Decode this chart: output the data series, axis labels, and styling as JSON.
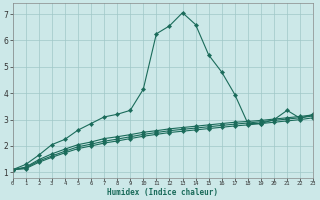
{
  "xlabel": "Humidex (Indice chaleur)",
  "bg_color": "#cce8e8",
  "grid_color": "#a0c8c8",
  "line_color": "#1a6b5a",
  "xlim": [
    0,
    23
  ],
  "ylim": [
    0.8,
    7.4
  ],
  "xticks": [
    0,
    1,
    2,
    3,
    4,
    5,
    6,
    7,
    8,
    9,
    10,
    11,
    12,
    13,
    14,
    15,
    16,
    17,
    18,
    19,
    20,
    21,
    22,
    23
  ],
  "yticks": [
    1,
    2,
    3,
    4,
    5,
    6,
    7
  ],
  "line1_x": [
    0,
    1,
    2,
    3,
    4,
    5,
    6,
    7,
    8,
    9,
    10,
    11,
    12,
    13,
    14,
    15,
    16,
    17,
    18,
    19,
    20,
    21,
    22,
    23
  ],
  "line1_y": [
    1.1,
    1.3,
    1.65,
    2.05,
    2.25,
    2.6,
    2.85,
    3.1,
    3.2,
    3.35,
    4.15,
    6.25,
    6.55,
    7.05,
    6.6,
    5.45,
    4.8,
    3.95,
    2.85,
    2.85,
    3.0,
    3.35,
    3.05,
    3.2
  ],
  "line2_x": [
    0,
    1,
    2,
    3,
    4,
    5,
    6,
    7,
    8,
    9,
    10,
    11,
    12,
    13,
    14,
    15,
    16,
    17,
    18,
    19,
    20,
    21,
    22,
    23
  ],
  "line2_y": [
    1.1,
    1.2,
    1.48,
    1.7,
    1.88,
    2.05,
    2.15,
    2.28,
    2.35,
    2.43,
    2.52,
    2.58,
    2.65,
    2.7,
    2.75,
    2.8,
    2.85,
    2.9,
    2.93,
    2.97,
    3.02,
    3.07,
    3.12,
    3.18
  ],
  "line3_x": [
    0,
    1,
    2,
    3,
    4,
    5,
    6,
    7,
    8,
    9,
    10,
    11,
    12,
    13,
    14,
    15,
    16,
    17,
    18,
    19,
    20,
    21,
    22,
    23
  ],
  "line3_y": [
    1.1,
    1.17,
    1.43,
    1.62,
    1.8,
    1.97,
    2.07,
    2.18,
    2.26,
    2.35,
    2.44,
    2.51,
    2.58,
    2.63,
    2.68,
    2.73,
    2.78,
    2.83,
    2.87,
    2.92,
    2.97,
    3.02,
    3.07,
    3.14
  ],
  "line4_x": [
    0,
    1,
    2,
    3,
    4,
    5,
    6,
    7,
    8,
    9,
    10,
    11,
    12,
    13,
    14,
    15,
    16,
    17,
    18,
    19,
    20,
    21,
    22,
    23
  ],
  "line4_y": [
    1.1,
    1.14,
    1.38,
    1.57,
    1.74,
    1.9,
    2.0,
    2.11,
    2.19,
    2.28,
    2.37,
    2.44,
    2.51,
    2.56,
    2.61,
    2.66,
    2.71,
    2.76,
    2.8,
    2.85,
    2.9,
    2.95,
    3.0,
    3.07
  ]
}
